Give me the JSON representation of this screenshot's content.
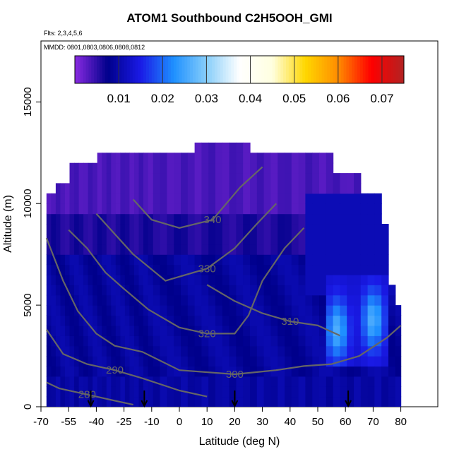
{
  "header": {
    "title": "ATOM1 Southbound C2H5OOH_GMI",
    "flights_note": "Flts: 2,3,4,5,6",
    "dates_note": "MMDD: 0801,0803,0806,0808,0812"
  },
  "chart_data": {
    "type": "heatmap",
    "title": "ATOM1 Southbound C2H5OOH_GMI",
    "xlabel": "Latitude (deg N)",
    "ylabel": "Altitude (m)",
    "xlim": [
      -70,
      80
    ],
    "ylim": [
      0,
      18000
    ],
    "x_tick_labels": [
      "-70",
      "-55",
      "-40",
      "-25",
      "-10",
      "0",
      "10",
      "20",
      "30",
      "40",
      "50",
      "60",
      "70",
      "80"
    ],
    "x_tick_values": [
      -70,
      -55,
      -40,
      -25,
      -10,
      0,
      10,
      20,
      30,
      40,
      50,
      60,
      70,
      80
    ],
    "y_ticks": [
      0,
      5000,
      10000,
      15000
    ],
    "y_tick_labels": [
      "0",
      "5000",
      "10000",
      "15000"
    ],
    "colorbar": {
      "range": [
        0,
        0.075
      ],
      "ticks": [
        0.01,
        0.02,
        0.03,
        0.04,
        0.05,
        0.06,
        0.07
      ],
      "tick_labels": [
        "0.01",
        "0.02",
        "0.03",
        "0.04",
        "0.05",
        "0.06",
        "0.07"
      ],
      "colors": [
        "#8a2be2",
        "#00008b",
        "#1a1ae6",
        "#1e90ff",
        "#87cefa",
        "#ffffff",
        "#ffffe0",
        "#ffd700",
        "#ff8c00",
        "#ff0000",
        "#b22222"
      ]
    },
    "field_description": "Mostly 0.003-0.015 mixing ratio; purple aloft (>10000 m), dark blue mid and low troposphere, lighter blue patch near 55-75N at 2000-6000 m",
    "theta_contours": [
      {
        "label": "280",
        "points": [
          [
            -67,
            1200
          ],
          [
            -60,
            900
          ],
          [
            -45,
            600
          ],
          [
            -30,
            300
          ],
          [
            -20,
            100
          ]
        ]
      },
      {
        "label": "290",
        "points": [
          [
            -67,
            3800
          ],
          [
            -58,
            2600
          ],
          [
            -45,
            2100
          ],
          [
            -30,
            1800
          ],
          [
            -15,
            1400
          ],
          [
            0,
            800
          ],
          [
            10,
            500
          ]
        ]
      },
      {
        "label": "300",
        "points": [
          [
            -67,
            8300
          ],
          [
            -58,
            6200
          ],
          [
            -50,
            4700
          ],
          [
            -40,
            3600
          ],
          [
            -30,
            3000
          ],
          [
            -15,
            2700
          ],
          [
            0,
            1800
          ],
          [
            20,
            1600
          ],
          [
            35,
            1800
          ],
          [
            45,
            2000
          ],
          [
            55,
            2100
          ],
          [
            65,
            2500
          ],
          [
            75,
            3400
          ],
          [
            80,
            4000
          ]
        ]
      },
      {
        "label": "310",
        "points": [
          [
            10,
            6000
          ],
          [
            20,
            5200
          ],
          [
            30,
            4600
          ],
          [
            40,
            4200
          ],
          [
            50,
            4000
          ],
          [
            58,
            3500
          ]
        ]
      },
      {
        "label": "320",
        "points": [
          [
            -55,
            8700
          ],
          [
            -45,
            7800
          ],
          [
            -35,
            6600
          ],
          [
            -25,
            5800
          ],
          [
            -12,
            4800
          ],
          [
            0,
            3900
          ],
          [
            10,
            3600
          ],
          [
            20,
            3600
          ],
          [
            25,
            4500
          ],
          [
            30,
            6200
          ],
          [
            38,
            7800
          ],
          [
            45,
            8800
          ]
        ]
      },
      {
        "label": "330",
        "points": [
          [
            -40,
            9500
          ],
          [
            -30,
            8500
          ],
          [
            -20,
            7500
          ],
          [
            -5,
            6200
          ],
          [
            10,
            6800
          ],
          [
            20,
            7800
          ],
          [
            28,
            9000
          ],
          [
            35,
            10000
          ]
        ]
      },
      {
        "label": "340",
        "points": [
          [
            -20,
            10200
          ],
          [
            -10,
            9200
          ],
          [
            0,
            8800
          ],
          [
            12,
            9200
          ],
          [
            22,
            10800
          ],
          [
            30,
            11800
          ]
        ]
      }
    ],
    "flight_markers_lat": [
      -43,
      -14,
      20,
      61
    ]
  }
}
